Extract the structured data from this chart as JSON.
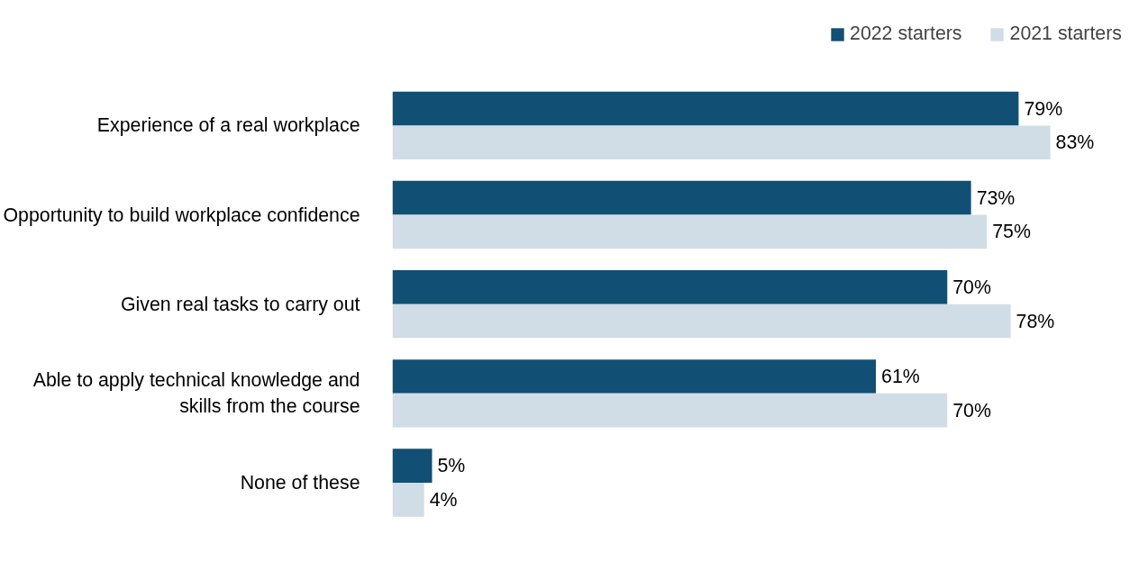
{
  "chart_data": {
    "type": "bar",
    "orientation": "horizontal",
    "categories": [
      "Experience of a real workplace",
      "Opportunity to build workplace confidence",
      "Given real tasks to carry out",
      "Able to apply technical knowledge and skills from the course",
      "None of these"
    ],
    "series": [
      {
        "name": "2022 starters",
        "color": "#124f75",
        "values": [
          79,
          73,
          70,
          61,
          5
        ],
        "value_labels": [
          "79%",
          "73%",
          "70%",
          "61%",
          "5%"
        ]
      },
      {
        "name": "2021 starters",
        "color": "#d0dde6",
        "values": [
          83,
          75,
          78,
          70,
          4
        ],
        "value_labels": [
          "83%",
          "75%",
          "78%",
          "70%",
          "4%"
        ]
      }
    ],
    "legend": "top right",
    "grid": false
  }
}
